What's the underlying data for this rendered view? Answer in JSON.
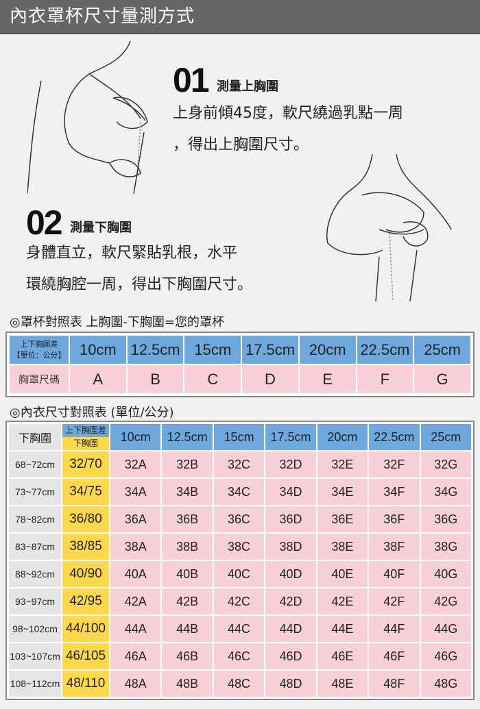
{
  "title": "內衣罩杯尺寸量測方式",
  "step1": {
    "num": "01",
    "title": "測量上胸圍",
    "desc1": "上身前傾45度，軟尺繞過乳點一周",
    "desc2": "，得出上胸圍尺寸。"
  },
  "step2": {
    "num": "02",
    "title": "測量下胸圍",
    "desc1": "身體直立，軟尺緊貼乳根，水平",
    "desc2": "環繞胸腔一周，得出下胸圍尺寸。"
  },
  "cup_section": "◎罩杯對照表 上胸圍-下胸圍=您的罩杯",
  "cup_table": {
    "header_line1": "上下胸圍差",
    "header_line2": "【單位：公分】",
    "row_label": "胸罩尺碼",
    "diffs": [
      "10cm",
      "12.5cm",
      "15cm",
      "17.5cm",
      "20cm",
      "22.5cm",
      "25cm"
    ],
    "cups": [
      "A",
      "B",
      "C",
      "D",
      "E",
      "F",
      "G"
    ]
  },
  "size_section": "◎內衣尺寸對照表 (單位/公分)",
  "size_table": {
    "corner": "下胸圍",
    "split_top": "上下胸圍差",
    "split_bottom": "下胸圍",
    "diffs": [
      "10cm",
      "12.5cm",
      "15cm",
      "17.5cm",
      "20cm",
      "22.5cm",
      "25cm"
    ],
    "rows": [
      {
        "range": "68~72cm",
        "band": "32/70",
        "sizes": [
          "32A",
          "32B",
          "32C",
          "32D",
          "32E",
          "32F",
          "32G"
        ]
      },
      {
        "range": "73~77cm",
        "band": "34/75",
        "sizes": [
          "34A",
          "34B",
          "34C",
          "34D",
          "34E",
          "34F",
          "34G"
        ]
      },
      {
        "range": "78~82cm",
        "band": "36/80",
        "sizes": [
          "36A",
          "36B",
          "36C",
          "36D",
          "36E",
          "36F",
          "36G"
        ]
      },
      {
        "range": "83~87cm",
        "band": "38/85",
        "sizes": [
          "38A",
          "38B",
          "38C",
          "38D",
          "38E",
          "38F",
          "38G"
        ]
      },
      {
        "range": "88~92cm",
        "band": "40/90",
        "sizes": [
          "40A",
          "40B",
          "40C",
          "40D",
          "40E",
          "40F",
          "40G"
        ]
      },
      {
        "range": "93~97cm",
        "band": "42/95",
        "sizes": [
          "42A",
          "42B",
          "42C",
          "42D",
          "42E",
          "42F",
          "42G"
        ]
      },
      {
        "range": "98~102cm",
        "band": "44/100",
        "sizes": [
          "44A",
          "44B",
          "44C",
          "44D",
          "44E",
          "44F",
          "44G"
        ]
      },
      {
        "range": "103~107cm",
        "band": "46/105",
        "sizes": [
          "46A",
          "46B",
          "46C",
          "46D",
          "46E",
          "46F",
          "46G"
        ]
      },
      {
        "range": "108~112cm",
        "band": "48/110",
        "sizes": [
          "48A",
          "48B",
          "48C",
          "48D",
          "48E",
          "48F",
          "48G"
        ]
      }
    ]
  },
  "colors": {
    "header_blue": "#6fa8dc",
    "cup_pink": "#f9d0d8",
    "band_yellow": "#ffd84d",
    "title_bar": "#666666"
  }
}
